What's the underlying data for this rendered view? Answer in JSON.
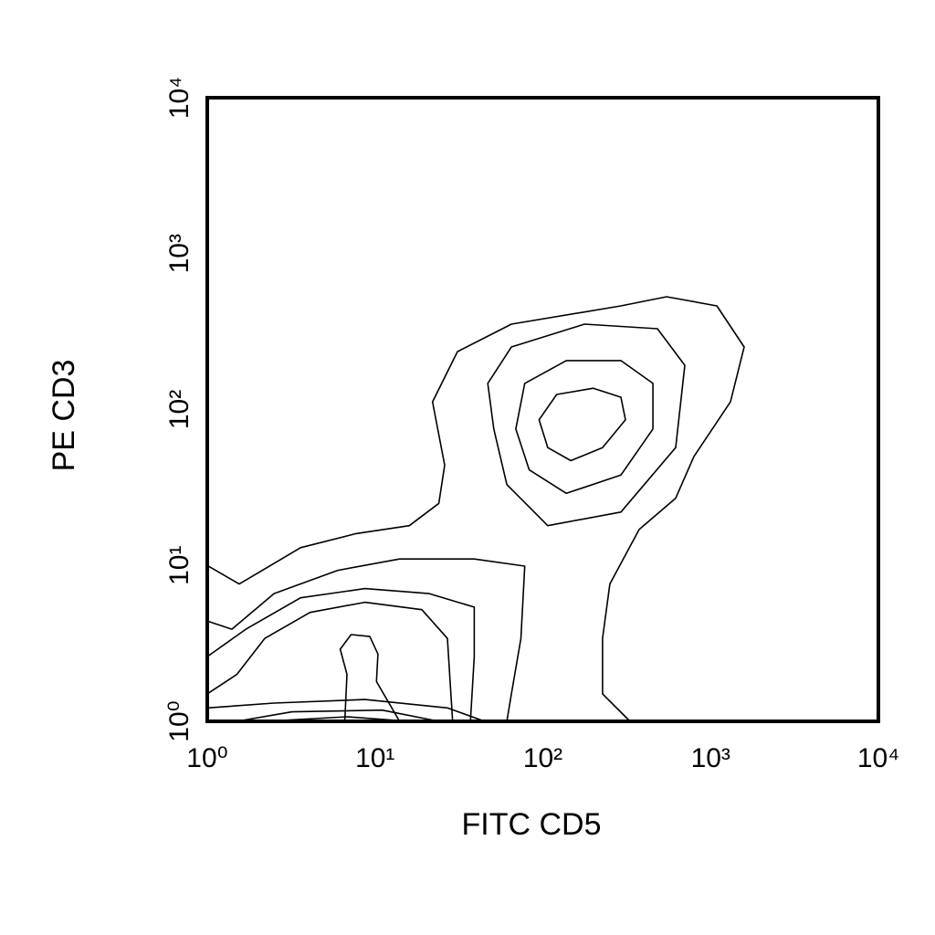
{
  "chart_data": {
    "type": "contour",
    "xlabel": "FITC CD5",
    "ylabel": "PE CD3",
    "xscale": "log",
    "yscale": "log",
    "xlim": [
      1,
      10000
    ],
    "ylim": [
      1,
      10000
    ],
    "xticks": [
      {
        "value": 1,
        "label": "10⁰"
      },
      {
        "value": 10,
        "label": "10¹"
      },
      {
        "value": 100,
        "label": "10²"
      },
      {
        "value": 1000,
        "label": "10³"
      },
      {
        "value": 10000,
        "label": "10⁴"
      }
    ],
    "yticks": [
      {
        "value": 1,
        "label": "10⁰"
      },
      {
        "value": 10,
        "label": "10¹"
      },
      {
        "value": 100,
        "label": "10²"
      },
      {
        "value": 1000,
        "label": "10³"
      },
      {
        "value": 10000,
        "label": "10⁴"
      }
    ],
    "color": "#000000",
    "contours": [
      {
        "closed": false,
        "x": [
          1,
          1.55,
          3.6,
          7.7,
          16,
          24,
          26,
          22,
          31,
          65,
          292,
          546,
          1090,
          1585,
          1313,
          796,
          619,
          375,
          251,
          227,
          227,
          331
        ],
        "y": [
          10,
          7.6,
          13,
          16,
          18,
          25,
          44,
          112,
          235,
          353,
          462,
          529,
          462,
          252,
          112,
          50,
          27,
          17,
          7.6,
          3.4,
          1.5,
          1
        ]
      },
      {
        "closed": true,
        "x": [
          51,
          61,
          107,
          292,
          619,
          702,
          482,
          177,
          65,
          47
        ],
        "y": [
          75,
          33,
          18,
          22,
          57,
          192,
          330,
          353,
          252,
          147
        ]
      },
      {
        "closed": true,
        "x": [
          69,
          83,
          138,
          292,
          453,
          453,
          292,
          138,
          78
        ],
        "y": [
          75,
          41,
          29,
          38,
          75,
          147,
          206,
          206,
          147
        ]
      },
      {
        "closed": true,
        "x": [
          95,
          107,
          147,
          227,
          311,
          292,
          200,
          121
        ],
        "y": [
          86,
          57,
          47,
          57,
          86,
          120,
          137,
          125
        ]
      },
      {
        "closed": false,
        "x": [
          1,
          1.4,
          2.5,
          6.0,
          14,
          39,
          78,
          74,
          65,
          61
        ],
        "y": [
          4.4,
          3.9,
          6.6,
          9.3,
          11,
          11,
          9.9,
          3.4,
          1.5,
          1
        ]
      },
      {
        "closed": false,
        "x": [
          1,
          1.7,
          3.6,
          8.7,
          21,
          39,
          39,
          37
        ],
        "y": [
          2.6,
          3.9,
          6.2,
          7.1,
          6.6,
          5.4,
          2.6,
          1
        ]
      },
      {
        "closed": false,
        "x": [
          1,
          1.5,
          2.2,
          4.1,
          8.7,
          19,
          27,
          29
        ],
        "y": [
          1.5,
          2.0,
          3.4,
          5.0,
          5.8,
          5.2,
          3.4,
          1
        ]
      },
      {
        "closed": false,
        "x": [
          6.6,
          6.8,
          6.2,
          7.2,
          9.3,
          10.4,
          10.2,
          14
        ],
        "y": [
          1,
          2.0,
          2.9,
          3.6,
          3.5,
          2.7,
          1.8,
          1
        ]
      },
      {
        "closed": false,
        "x": [
          1,
          2.5,
          8.7,
          27,
          45
        ],
        "y": [
          1.22,
          1.31,
          1.38,
          1.22,
          1
        ]
      },
      {
        "closed": false,
        "x": [
          1.5,
          3.2,
          11,
          24
        ],
        "y": [
          1,
          1.15,
          1.18,
          1
        ]
      },
      {
        "closed": false,
        "x": [
          2.2,
          6.8,
          16
        ],
        "y": [
          1,
          1.07,
          1
        ]
      }
    ]
  }
}
